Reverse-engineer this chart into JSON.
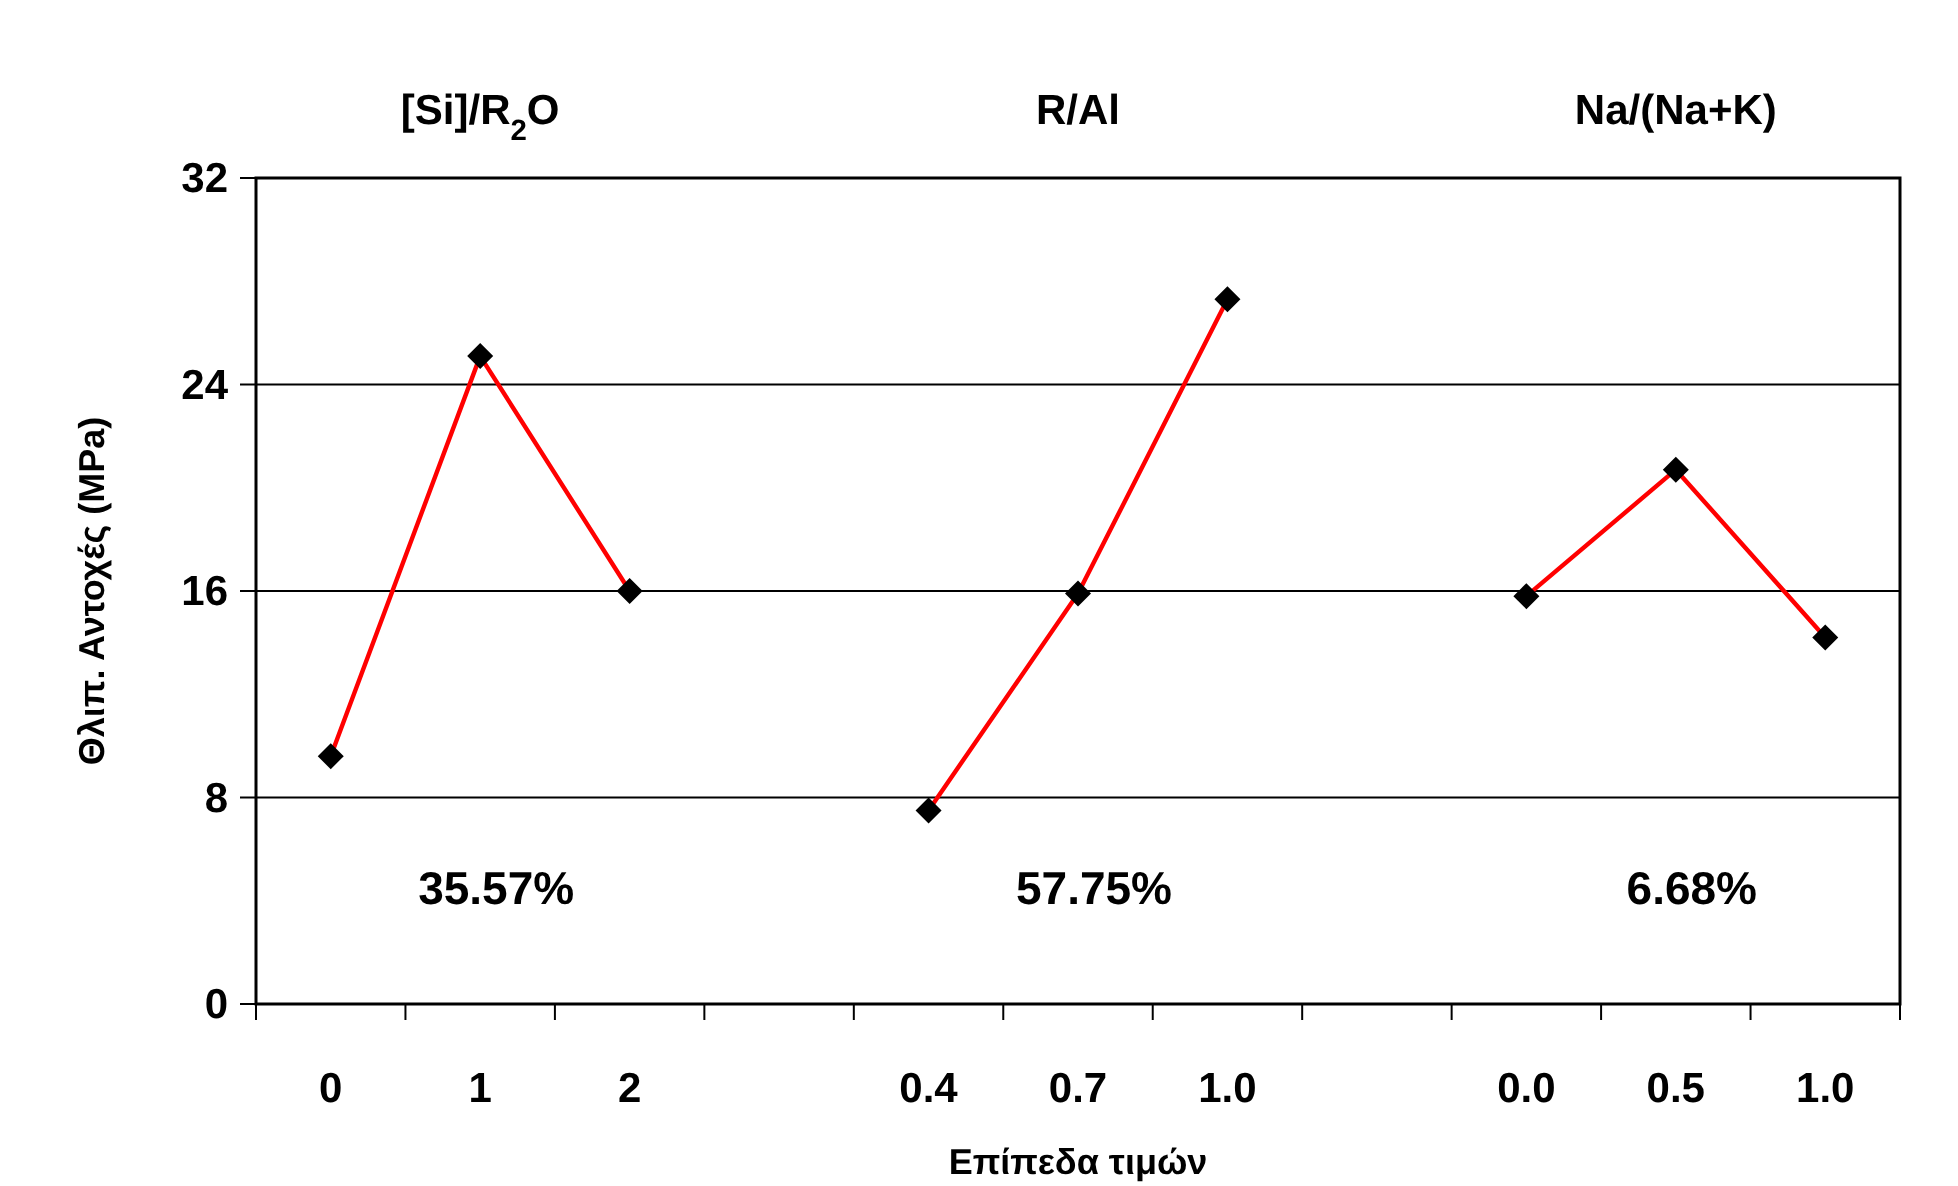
{
  "chart_data": {
    "type": "line",
    "xlabel": "Επίπεδα τιμών",
    "ylabel": "Θλιπ. Αντοχές (MPa)",
    "categories": [
      "0",
      "1",
      "2",
      null,
      "0.4",
      "0.7",
      "1.0",
      null,
      "0.0",
      "0.5",
      "1.0"
    ],
    "series": [
      {
        "color": "#ff0000",
        "values": [
          9.6,
          25.1,
          16.0,
          null,
          7.5,
          15.9,
          27.3,
          null,
          15.8,
          20.7,
          14.2
        ]
      }
    ],
    "ylim": [
      0,
      32
    ],
    "yticks": [
      0,
      8,
      16,
      24,
      32
    ],
    "grid": "y",
    "marker": "diamond",
    "line_style": "solid",
    "annotations": [
      "[Si]/R$_{2}$O",
      "R/Al",
      "Na/(Na+K)",
      "35.57%",
      "57.75%",
      "6.68%"
    ]
  }
}
